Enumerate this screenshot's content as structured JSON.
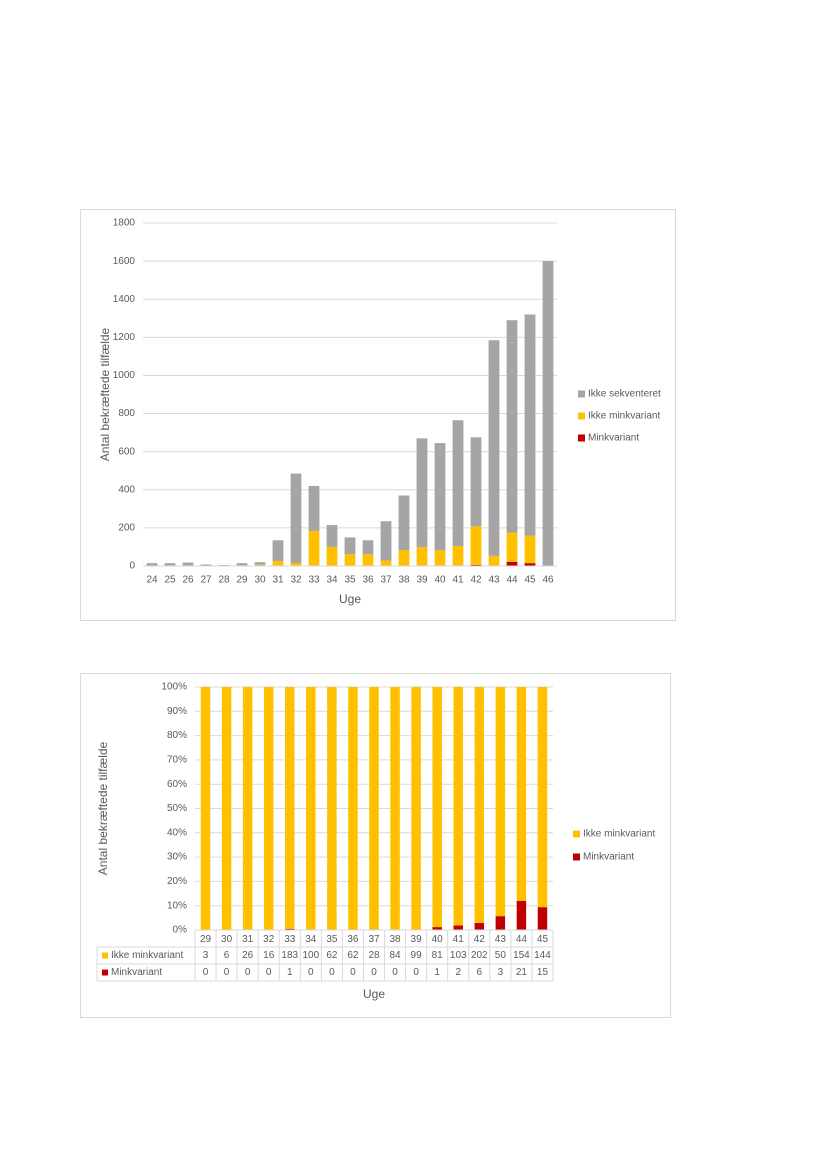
{
  "chart_data": [
    {
      "type": "stacked-bar",
      "y_label": "Antal bekræftede tilfælde",
      "x_label": "Uge",
      "categories": [
        "24",
        "25",
        "26",
        "27",
        "28",
        "29",
        "30",
        "31",
        "32",
        "33",
        "34",
        "35",
        "36",
        "37",
        "38",
        "39",
        "40",
        "41",
        "42",
        "43",
        "44",
        "45",
        "46"
      ],
      "series": [
        {
          "name": "Minkvariant",
          "color": "#c00000",
          "values": [
            0,
            0,
            0,
            0,
            0,
            0,
            0,
            0,
            0,
            1,
            0,
            0,
            0,
            0,
            0,
            0,
            1,
            2,
            6,
            3,
            21,
            15,
            0
          ]
        },
        {
          "name": "Ikke minkvariant",
          "color": "#ffc000",
          "values": [
            0,
            0,
            0,
            0,
            0,
            3,
            6,
            26,
            16,
            183,
            100,
            62,
            62,
            28,
            84,
            99,
            81,
            103,
            202,
            50,
            154,
            144,
            0
          ]
        },
        {
          "name": "Ikke sekventeret",
          "color": "#a5a5a5",
          "values": [
            15,
            15,
            18,
            8,
            5,
            12,
            14,
            109,
            469,
            236,
            115,
            88,
            73,
            207,
            286,
            571,
            563,
            660,
            467,
            1132,
            1115,
            1161,
            1600
          ]
        }
      ],
      "ylim": [
        0,
        1800
      ],
      "yticks": [
        0,
        200,
        400,
        600,
        800,
        1000,
        1200,
        1400,
        1600,
        1800
      ],
      "grid": true,
      "legend": "right"
    },
    {
      "type": "stacked-bar-100",
      "y_label": "Antal bekræftede tilfælde",
      "x_label": "Uge",
      "categories": [
        "29",
        "30",
        "31",
        "32",
        "33",
        "34",
        "35",
        "36",
        "37",
        "38",
        "39",
        "40",
        "41",
        "42",
        "43",
        "44",
        "45"
      ],
      "series": [
        {
          "name": "Minkvariant",
          "color": "#c00000",
          "values": [
            0,
            0,
            0,
            0,
            0.5,
            0,
            0,
            0,
            0,
            0,
            0,
            1.2,
            1.9,
            2.9,
            5.7,
            12,
            9.4
          ]
        },
        {
          "name": "Ikke minkvariant",
          "color": "#ffc000",
          "values": [
            100,
            100,
            100,
            100,
            99.5,
            100,
            100,
            100,
            100,
            100,
            100,
            98.8,
            98.1,
            97.1,
            94.3,
            88,
            90.6
          ]
        }
      ],
      "ylim": [
        0,
        100
      ],
      "yticks": [
        {
          "value": 0,
          "label": "0%"
        },
        {
          "value": 10,
          "label": "10%"
        },
        {
          "value": 20,
          "label": "20%"
        },
        {
          "value": 30,
          "label": "30%"
        },
        {
          "value": 40,
          "label": "40%"
        },
        {
          "value": 50,
          "label": "50%"
        },
        {
          "value": 60,
          "label": "60%"
        },
        {
          "value": 70,
          "label": "70%"
        },
        {
          "value": 80,
          "label": "80%"
        },
        {
          "value": 90,
          "label": "90%"
        },
        {
          "value": 100,
          "label": "100%"
        }
      ],
      "grid": true,
      "legend": "right",
      "data_table": [
        {
          "name": "Ikke minkvariant",
          "color": "#ffc000",
          "values": [
            3,
            6,
            26,
            16,
            183,
            100,
            62,
            62,
            28,
            84,
            99,
            81,
            103,
            202,
            50,
            154,
            144
          ]
        },
        {
          "name": "Minkvariant",
          "color": "#c00000",
          "values": [
            0,
            0,
            0,
            0,
            1,
            0,
            0,
            0,
            0,
            0,
            0,
            1,
            2,
            6,
            3,
            21,
            15
          ]
        }
      ]
    }
  ]
}
